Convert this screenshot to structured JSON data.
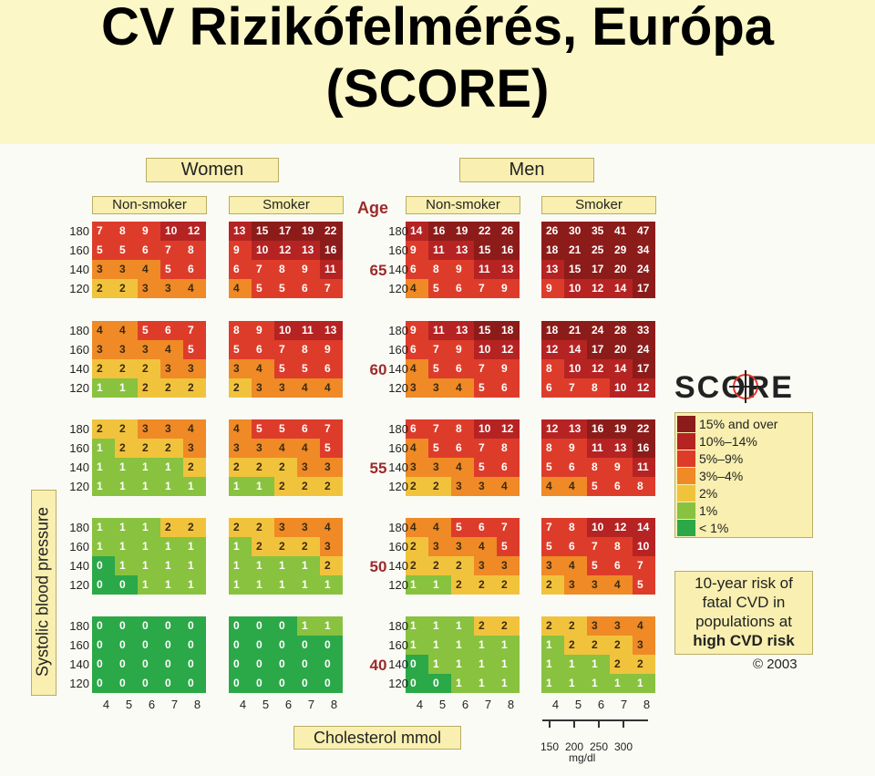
{
  "title": {
    "line1": "CV Rizikófelmérés, Európa",
    "line2": "(SCORE)"
  },
  "headers": {
    "women": "Women",
    "men": "Men",
    "non_smoker": "Non-smoker",
    "smoker": "Smoker",
    "age": "Age"
  },
  "axis": {
    "y_label": "Systolic blood pressure",
    "x_label": "Cholesterol mmol",
    "mgdl_ticks": [
      "150",
      "200",
      "250",
      "300"
    ],
    "mgdl_unit": "mg/dl"
  },
  "legend": {
    "logo": "SCORE",
    "items": [
      {
        "label": "15% and over",
        "color": "#8c1c1a"
      },
      {
        "label": "10%–14%",
        "color": "#b62323"
      },
      {
        "label": "5%–9%",
        "color": "#de3c2a"
      },
      {
        "label": "3%–4%",
        "color": "#ef8a26"
      },
      {
        "label": "2%",
        "color": "#f1c33c"
      },
      {
        "label": "1%",
        "color": "#88c23f"
      },
      {
        "label": "< 1%",
        "color": "#2ba848"
      }
    ],
    "risk_note": [
      "10-year risk of",
      "fatal CVD in",
      "populations at",
      "high CVD risk"
    ],
    "copyright": "© 2003"
  },
  "chart_data": {
    "type": "heatmap",
    "title": "CV Rizikófelmérés, Európa (SCORE)",
    "ylabel": "Systolic blood pressure",
    "xlabel": "Cholesterol mmol",
    "cholesterol_mmol": [
      "4",
      "5",
      "6",
      "7",
      "8"
    ],
    "systolic_bp": [
      "180",
      "160",
      "140",
      "120"
    ],
    "ages": [
      "65",
      "60",
      "55",
      "50",
      "40"
    ],
    "groups": [
      {
        "sex": "Women",
        "smoking": "Non-smoker",
        "age_tables": [
          [
            [
              7,
              8,
              9,
              10,
              12
            ],
            [
              5,
              5,
              6,
              7,
              8
            ],
            [
              3,
              3,
              4,
              5,
              6
            ],
            [
              2,
              2,
              3,
              3,
              4
            ]
          ],
          [
            [
              4,
              4,
              5,
              6,
              7
            ],
            [
              3,
              3,
              3,
              4,
              5
            ],
            [
              2,
              2,
              2,
              3,
              3
            ],
            [
              1,
              1,
              2,
              2,
              2
            ]
          ],
          [
            [
              2,
              2,
              3,
              3,
              4
            ],
            [
              1,
              2,
              2,
              2,
              3
            ],
            [
              1,
              1,
              1,
              1,
              2
            ],
            [
              1,
              1,
              1,
              1,
              1
            ]
          ],
          [
            [
              1,
              1,
              1,
              2,
              2
            ],
            [
              1,
              1,
              1,
              1,
              1
            ],
            [
              0,
              1,
              1,
              1,
              1
            ],
            [
              0,
              0,
              1,
              1,
              1
            ]
          ],
          [
            [
              0,
              0,
              0,
              0,
              0
            ],
            [
              0,
              0,
              0,
              0,
              0
            ],
            [
              0,
              0,
              0,
              0,
              0
            ],
            [
              0,
              0,
              0,
              0,
              0
            ]
          ]
        ]
      },
      {
        "sex": "Women",
        "smoking": "Smoker",
        "age_tables": [
          [
            [
              13,
              15,
              17,
              19,
              22
            ],
            [
              9,
              10,
              12,
              13,
              16
            ],
            [
              6,
              7,
              8,
              9,
              11
            ],
            [
              4,
              5,
              5,
              6,
              7
            ]
          ],
          [
            [
              8,
              9,
              10,
              11,
              13
            ],
            [
              5,
              6,
              7,
              8,
              9
            ],
            [
              3,
              4,
              5,
              5,
              6
            ],
            [
              2,
              3,
              3,
              4,
              4
            ]
          ],
          [
            [
              4,
              5,
              5,
              6,
              7
            ],
            [
              3,
              3,
              4,
              4,
              5
            ],
            [
              2,
              2,
              2,
              3,
              3
            ],
            [
              1,
              1,
              2,
              2,
              2
            ]
          ],
          [
            [
              2,
              2,
              3,
              3,
              4
            ],
            [
              1,
              2,
              2,
              2,
              3
            ],
            [
              1,
              1,
              1,
              1,
              2
            ],
            [
              1,
              1,
              1,
              1,
              1
            ]
          ],
          [
            [
              0,
              0,
              0,
              1,
              1
            ],
            [
              0,
              0,
              0,
              0,
              0
            ],
            [
              0,
              0,
              0,
              0,
              0
            ],
            [
              0,
              0,
              0,
              0,
              0
            ]
          ]
        ]
      },
      {
        "sex": "Men",
        "smoking": "Non-smoker",
        "age_tables": [
          [
            [
              14,
              16,
              19,
              22,
              26
            ],
            [
              9,
              11,
              13,
              15,
              16
            ],
            [
              6,
              8,
              9,
              11,
              13
            ],
            [
              4,
              5,
              6,
              7,
              9
            ]
          ],
          [
            [
              9,
              11,
              13,
              15,
              18
            ],
            [
              6,
              7,
              9,
              10,
              12
            ],
            [
              4,
              5,
              6,
              7,
              9
            ],
            [
              3,
              3,
              4,
              5,
              6
            ]
          ],
          [
            [
              6,
              7,
              8,
              10,
              12
            ],
            [
              4,
              5,
              6,
              7,
              8
            ],
            [
              3,
              3,
              4,
              5,
              6
            ],
            [
              2,
              2,
              3,
              3,
              4
            ]
          ],
          [
            [
              4,
              4,
              5,
              6,
              7
            ],
            [
              2,
              3,
              3,
              4,
              5
            ],
            [
              2,
              2,
              2,
              3,
              3
            ],
            [
              1,
              1,
              2,
              2,
              2
            ]
          ],
          [
            [
              1,
              1,
              1,
              2,
              2
            ],
            [
              1,
              1,
              1,
              1,
              1
            ],
            [
              0,
              1,
              1,
              1,
              1
            ],
            [
              0,
              0,
              1,
              1,
              1
            ]
          ]
        ]
      },
      {
        "sex": "Men",
        "smoking": "Smoker",
        "age_tables": [
          [
            [
              26,
              30,
              35,
              41,
              47
            ],
            [
              18,
              21,
              25,
              29,
              34
            ],
            [
              13,
              15,
              17,
              20,
              24
            ],
            [
              9,
              10,
              12,
              14,
              17
            ]
          ],
          [
            [
              18,
              21,
              24,
              28,
              33
            ],
            [
              12,
              14,
              17,
              20,
              24
            ],
            [
              8,
              10,
              12,
              14,
              17
            ],
            [
              6,
              7,
              8,
              10,
              12
            ]
          ],
          [
            [
              12,
              13,
              16,
              19,
              22
            ],
            [
              8,
              9,
              11,
              13,
              16
            ],
            [
              5,
              6,
              8,
              9,
              11
            ],
            [
              4,
              4,
              5,
              6,
              8
            ]
          ],
          [
            [
              7,
              8,
              10,
              12,
              14
            ],
            [
              5,
              6,
              7,
              8,
              10
            ],
            [
              3,
              4,
              5,
              6,
              7
            ],
            [
              2,
              3,
              3,
              4,
              5
            ]
          ],
          [
            [
              2,
              2,
              3,
              3,
              4
            ],
            [
              1,
              2,
              2,
              2,
              3
            ],
            [
              1,
              1,
              1,
              2,
              2
            ],
            [
              1,
              1,
              1,
              1,
              1
            ]
          ]
        ]
      }
    ]
  }
}
